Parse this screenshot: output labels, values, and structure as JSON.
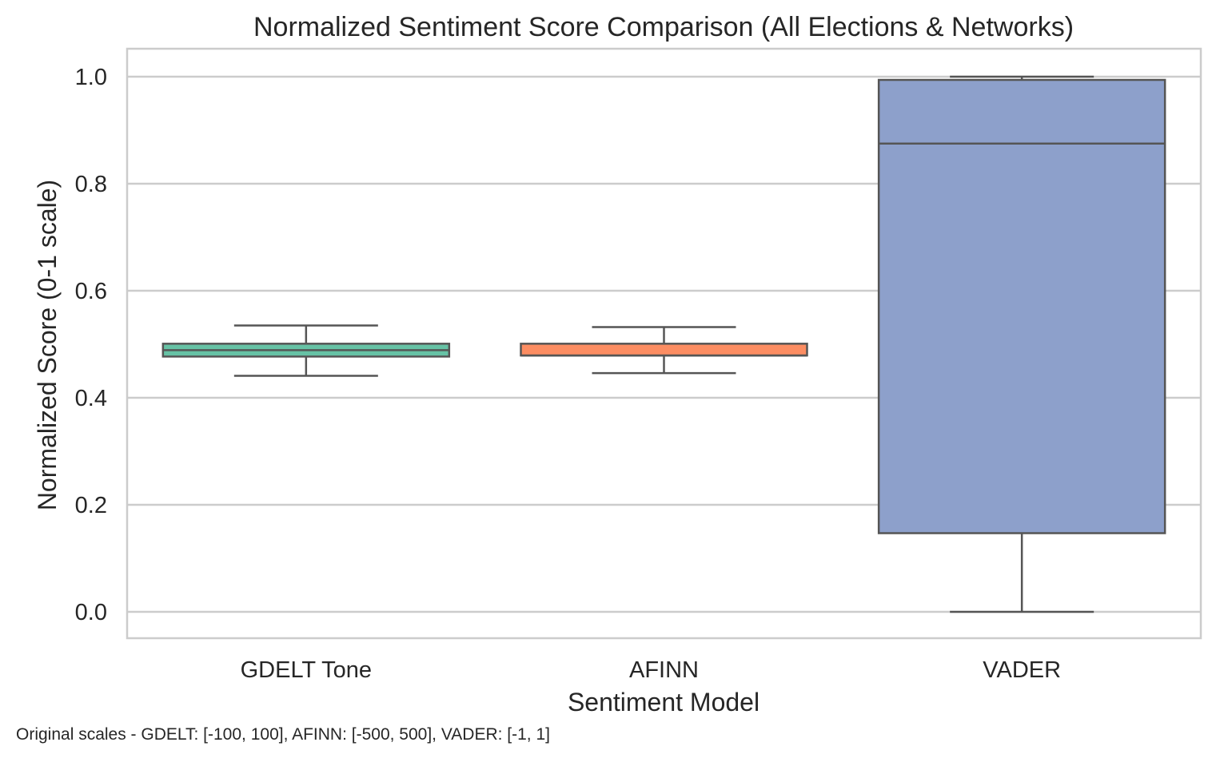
{
  "chart_data": {
    "type": "box",
    "title": "Normalized Sentiment Score Comparison (All Elections & Networks)",
    "xlabel": "Sentiment Model",
    "ylabel": "Normalized Score (0-1 scale)",
    "ylim": [
      -0.05,
      1.05
    ],
    "yticks": [
      0.0,
      0.2,
      0.4,
      0.6,
      0.8,
      1.0
    ],
    "ytick_labels": [
      "0.0",
      "0.2",
      "0.4",
      "0.6",
      "0.8",
      "1.0"
    ],
    "grid": true,
    "categories": [
      "GDELT Tone",
      "AFINN",
      "VADER"
    ],
    "boxes": [
      {
        "category": "GDELT Tone",
        "whisker_low": 0.441,
        "q1": 0.477,
        "median": 0.489,
        "q3": 0.501,
        "whisker_high": 0.535,
        "color": "#66c2a5"
      },
      {
        "category": "AFINN",
        "whisker_low": 0.446,
        "q1": 0.479,
        "median": 0.479,
        "q3": 0.501,
        "whisker_high": 0.532,
        "color": "#fc8d62"
      },
      {
        "category": "VADER",
        "whisker_low": 0.0,
        "q1": 0.147,
        "median": 0.875,
        "q3": 0.994,
        "whisker_high": 1.0,
        "color": "#8da0cb"
      }
    ]
  },
  "footnote": "Original scales - GDELT: [-100, 100], AFINN: [-500, 500], VADER: [-1, 1]",
  "colors": {
    "box_edge": "#555555",
    "grid": "#cccccc",
    "frame": "#cccccc",
    "text": "#262626"
  }
}
